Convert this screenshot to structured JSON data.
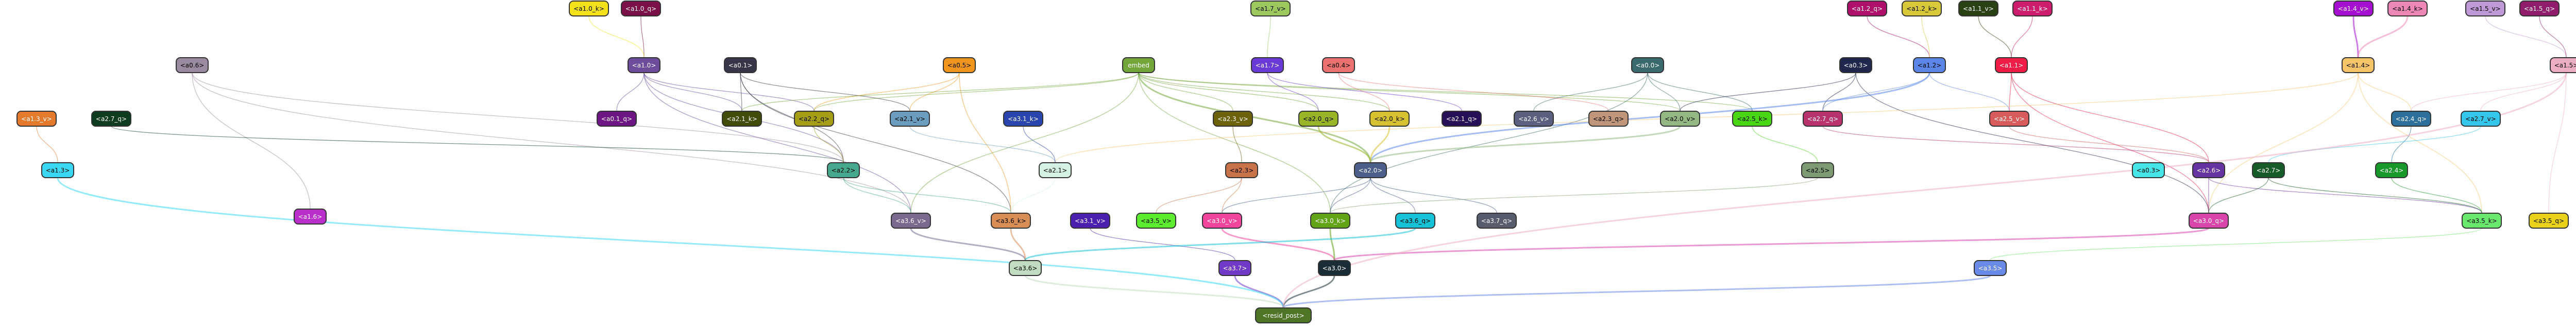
{
  "nodes": [
    {
      "id": "a1_0_k",
      "label": "<a1.0_k>",
      "color": "#f5e11a"
    },
    {
      "id": "a1_0_q",
      "label": "<a1.0_q>",
      "color": "#7a1047"
    },
    {
      "id": "a1_7_v",
      "label": "<a1.7_v>",
      "color": "#9cc85e"
    },
    {
      "id": "a1_2_q",
      "label": "<a1.2_q>",
      "color": "#ae0f6a"
    },
    {
      "id": "a1_2_k",
      "label": "<a1.2_k>",
      "color": "#d8c93a"
    },
    {
      "id": "a1_1_v",
      "label": "<a1.1_v>",
      "color": "#2a4113"
    },
    {
      "id": "a1_1_k",
      "label": "<a1.1_k>",
      "color": "#cf1d6d"
    },
    {
      "id": "a1_4_v",
      "label": "<a1.4_v>",
      "color": "#a50fd0"
    },
    {
      "id": "a1_4_k",
      "label": "<a1.4_k>",
      "color": "#ec87b6"
    },
    {
      "id": "a1_5_v",
      "label": "<a1.5_v>",
      "color": "#c09ad7"
    },
    {
      "id": "a1_5_q",
      "label": "<a1.5_q>",
      "color": "#8f1d6c"
    },
    {
      "id": "a0_6",
      "label": "<a0.6>",
      "color": "#9a8ba0"
    },
    {
      "id": "a1_0",
      "label": "<a1.0>",
      "color": "#6d4c9c"
    },
    {
      "id": "a0_1",
      "label": "<a0.1>",
      "color": "#373648"
    },
    {
      "id": "a0_5",
      "label": "<a0.5>",
      "color": "#f2951c"
    },
    {
      "id": "embed",
      "label": "embed",
      "color": "#72a53a"
    },
    {
      "id": "a1_7",
      "label": "<a1.7>",
      "color": "#6a3ad6"
    },
    {
      "id": "a0_4",
      "label": "<a0.4>",
      "color": "#ec7272"
    },
    {
      "id": "a0_0",
      "label": "<a0.0>",
      "color": "#3a6a6e"
    },
    {
      "id": "a0_3",
      "label": "<a0.3>",
      "color": "#20274e"
    },
    {
      "id": "a1_2",
      "label": "<a1.2>",
      "color": "#5b86e8"
    },
    {
      "id": "a1_1",
      "label": "<a1.1>",
      "color": "#f11c46"
    },
    {
      "id": "a1_4",
      "label": "<a1.4>",
      "color": "#f8c46a"
    },
    {
      "id": "a1_5",
      "label": "<a1.5>",
      "color": "#edaec4"
    },
    {
      "id": "a1_3_v",
      "label": "<a1.3_v>",
      "color": "#e37a2c"
    },
    {
      "id": "a2_7_q",
      "label": "<a2.7_q>",
      "color": "#0d3d1e"
    },
    {
      "id": "a0_1_q",
      "label": "<a0.1_q>",
      "color": "#6d1683"
    },
    {
      "id": "a2_1_k",
      "label": "<a2.1_k>",
      "color": "#424b0a"
    },
    {
      "id": "a2_2_q",
      "label": "<a2.2_q>",
      "color": "#a59e14"
    },
    {
      "id": "a2_1_v",
      "label": "<a2.1_v>",
      "color": "#6b9dbf"
    },
    {
      "id": "a3_1_k",
      "label": "<a3.1_k>",
      "color": "#2a45ae"
    },
    {
      "id": "a2_3_v",
      "label": "<a2.3_v>",
      "color": "#6b620b"
    },
    {
      "id": "a2_0_q",
      "label": "<a2.0_q>",
      "color": "#97b526"
    },
    {
      "id": "a2_0_k",
      "label": "<a2.0_k>",
      "color": "#d6c230"
    },
    {
      "id": "a2_1_q",
      "label": "<a2.1_q>",
      "color": "#270f57"
    },
    {
      "id": "a2_6_v",
      "label": "<a2.6_v>",
      "color": "#5b6080"
    },
    {
      "id": "a2_3_q",
      "label": "<a2.3_q>",
      "color": "#c0967a"
    },
    {
      "id": "a2_0_v",
      "label": "<a2.0_v>",
      "color": "#94b883"
    },
    {
      "id": "a2_5_k",
      "label": "<a2.5_k>",
      "color": "#49d613"
    },
    {
      "id": "a2_7_q2",
      "label": "<a2.7_q>",
      "color": "#b8336e"
    },
    {
      "id": "a2_5_v",
      "label": "<a2.5_v>",
      "color": "#d85c5c"
    },
    {
      "id": "a2_4_q",
      "label": "<a2.4_q>",
      "color": "#2c709b"
    },
    {
      "id": "a2_7_v",
      "label": "<a2.7_v>",
      "color": "#35c6ec"
    },
    {
      "id": "a1_3",
      "label": "<a1.3>",
      "color": "#3ad8f2"
    },
    {
      "id": "a1_6",
      "label": "<a1.6>",
      "color": "#b82fca"
    },
    {
      "id": "a2_2",
      "label": "<a2.2>",
      "color": "#45a78c"
    },
    {
      "id": "a2_1",
      "label": "<a2.1>",
      "color": "#d4f2e4"
    },
    {
      "id": "a2_3",
      "label": "<a2.3>",
      "color": "#c8724a"
    },
    {
      "id": "a2_0",
      "label": "<a2.0>",
      "color": "#4b5f8a"
    },
    {
      "id": "a2_5",
      "label": "<a2.5>",
      "color": "#7d9a72"
    },
    {
      "id": "a0_3b",
      "label": "<a0.3>",
      "color": "#46e6e8"
    },
    {
      "id": "a2_6",
      "label": "<a2.6>",
      "color": "#6634a0"
    },
    {
      "id": "a2_7",
      "label": "<a2.7>",
      "color": "#175c28"
    },
    {
      "id": "a2_4",
      "label": "<a2.4>",
      "color": "#18982a"
    },
    {
      "id": "a3_6_v",
      "label": "<a3.6_v>",
      "color": "#79698f"
    },
    {
      "id": "a3_6_k",
      "label": "<a3.6_k>",
      "color": "#d88e55"
    },
    {
      "id": "a3_1_v",
      "label": "<a3.1_v>",
      "color": "#4b1fae"
    },
    {
      "id": "a3_5_v",
      "label": "<a3.5_v>",
      "color": "#5cee2e"
    },
    {
      "id": "a3_0_v",
      "label": "<a3.0_v>",
      "color": "#f0459c"
    },
    {
      "id": "a3_0_k",
      "label": "<a3.0_k>",
      "color": "#62a416"
    },
    {
      "id": "a3_6_q",
      "label": "<a3.6_q>",
      "color": "#16c2d6"
    },
    {
      "id": "a3_7_q",
      "label": "<a3.7_q>",
      "color": "#585c6c"
    },
    {
      "id": "a3_0_q",
      "label": "<a3.0_q>",
      "color": "#d846ac"
    },
    {
      "id": "a3_5_k",
      "label": "<a3.5_k>",
      "color": "#6ae86e"
    },
    {
      "id": "a3_5_q",
      "label": "<a3.5_q>",
      "color": "#ebd21a"
    },
    {
      "id": "a3_6",
      "label": "<a3.6>",
      "color": "#c1dcc1"
    },
    {
      "id": "a3_7",
      "label": "<a3.7>",
      "color": "#7039c8"
    },
    {
      "id": "a3_0",
      "label": "<a3.0>",
      "color": "#1a2d36"
    },
    {
      "id": "a3_5",
      "label": "<a3.5>",
      "color": "#6a8ae8"
    },
    {
      "id": "resid_post",
      "label": "<resid_post>",
      "color": "#4e7426"
    }
  ],
  "edges": [
    [
      "a1_0_q",
      "a1_0"
    ],
    [
      "a1_0_k",
      "a1_0"
    ],
    [
      "a1_7_v",
      "a1_7"
    ],
    [
      "a1_2_q",
      "a1_2"
    ],
    [
      "a1_2_k",
      "a1_2"
    ],
    [
      "a1_1_v",
      "a1_1"
    ],
    [
      "a1_1_k",
      "a1_1"
    ],
    [
      "a1_4_v",
      "a1_4"
    ],
    [
      "a1_4_k",
      "a1_4"
    ],
    [
      "a1_5_v",
      "a1_5"
    ],
    [
      "a1_5_q",
      "a1_5"
    ],
    [
      "a1_0",
      "a0_1_q"
    ],
    [
      "a1_0",
      "a2_1_k"
    ],
    [
      "a1_0",
      "a2_2_q"
    ],
    [
      "a1_0",
      "a3_6_v"
    ],
    [
      "a1_0",
      "a2_2"
    ],
    [
      "a0_1",
      "a2_1_v"
    ],
    [
      "a0_1",
      "a2_1_k"
    ],
    [
      "a0_1",
      "a2_2"
    ],
    [
      "a0_1",
      "a3_6_k"
    ],
    [
      "a0_6",
      "a3_6_v"
    ],
    [
      "a0_6",
      "a2_2"
    ],
    [
      "a0_6",
      "a1_6"
    ],
    [
      "a0_5",
      "a2_1_v"
    ],
    [
      "a0_5",
      "a3_6_k"
    ],
    [
      "a0_5",
      "a2_2_q"
    ],
    [
      "embed",
      "a2_1_k"
    ],
    [
      "embed",
      "a2_2_q"
    ],
    [
      "embed",
      "a2_0_q"
    ],
    [
      "embed",
      "a2_0_k"
    ],
    [
      "embed",
      "a2_3_v"
    ],
    [
      "embed",
      "a2_0_v"
    ],
    [
      "embed",
      "a2_5_k"
    ],
    [
      "embed",
      "a3_6_v"
    ],
    [
      "embed",
      "a3_0_k"
    ],
    [
      "embed",
      "a2_0"
    ],
    [
      "a1_7",
      "a2_0_q"
    ],
    [
      "a1_7",
      "a2_1_q"
    ],
    [
      "a0_4",
      "a2_0_k"
    ],
    [
      "a0_4",
      "a2_3_q"
    ],
    [
      "a0_0",
      "a2_0_v"
    ],
    [
      "a0_0",
      "a2_6_v"
    ],
    [
      "a0_0",
      "a2_5_k"
    ],
    [
      "a0_0",
      "a3_0_k"
    ],
    [
      "a0_3",
      "a2_0_v"
    ],
    [
      "a0_3",
      "a2_7_q2"
    ],
    [
      "a0_3",
      "a3_0_q"
    ],
    [
      "a1_2",
      "a2_5_v"
    ],
    [
      "a1_2",
      "a2_7_q2"
    ],
    [
      "a1_2",
      "a2_0"
    ],
    [
      "a1_1",
      "a2_5_v"
    ],
    [
      "a1_1",
      "a3_0_q"
    ],
    [
      "a1_1",
      "a2_6"
    ],
    [
      "a1_4",
      "a2_4_q"
    ],
    [
      "a1_4",
      "a3_5_k"
    ],
    [
      "a1_4",
      "a3_0_q"
    ],
    [
      "a1_4",
      "a2_1"
    ],
    [
      "a1_5",
      "a2_4_q"
    ],
    [
      "a1_5",
      "a2_7_v"
    ],
    [
      "a1_5",
      "a3_5_q"
    ],
    [
      "a1_3_v",
      "a1_3"
    ],
    [
      "a2_7_q",
      "a2_2"
    ],
    [
      "a2_2_q",
      "a2_2"
    ],
    [
      "a2_1_v",
      "a2_1"
    ],
    [
      "a3_1_k",
      "a2_1"
    ],
    [
      "a2_3_v",
      "a2_3"
    ],
    [
      "a2_0_q",
      "a2_0"
    ],
    [
      "a2_0_k",
      "a2_0"
    ],
    [
      "a2_0_v",
      "a2_0"
    ],
    [
      "a2_5_k",
      "a2_5"
    ],
    [
      "a2_7_q2",
      "a2_6"
    ],
    [
      "a2_5_v",
      "a2_6"
    ],
    [
      "a2_4_q",
      "a2_4"
    ],
    [
      "a2_7_v",
      "a2_7"
    ],
    [
      "a2_2",
      "a3_6_v"
    ],
    [
      "a2_2",
      "a3_6_k"
    ],
    [
      "a2_1",
      "a3_6_k"
    ],
    [
      "a2_3",
      "a3_0_v"
    ],
    [
      "a2_3",
      "a3_5_v"
    ],
    [
      "a2_0",
      "a3_0_k"
    ],
    [
      "a2_0",
      "a3_6_q"
    ],
    [
      "a2_0",
      "a3_7_q"
    ],
    [
      "a2_0",
      "a3_0_v"
    ],
    [
      "a2_5",
      "a3_0_k"
    ],
    [
      "a2_6",
      "a3_0_q"
    ],
    [
      "a2_6",
      "a3_5_k"
    ],
    [
      "a2_7",
      "a3_0_q"
    ],
    [
      "a2_7",
      "a3_5_k"
    ],
    [
      "a2_4",
      "a3_5_k"
    ],
    [
      "a3_6_v",
      "a3_6"
    ],
    [
      "a3_6_k",
      "a3_6"
    ],
    [
      "a3_1_v",
      "a3_7"
    ],
    [
      "a3_0_v",
      "a3_0"
    ],
    [
      "a3_0_k",
      "a3_0"
    ],
    [
      "a3_6_q",
      "a3_6"
    ],
    [
      "a3_0_q",
      "a3_0"
    ],
    [
      "a3_5_k",
      "a3_5"
    ],
    [
      "a3_6",
      "resid_post"
    ],
    [
      "a3_7",
      "resid_post"
    ],
    [
      "a3_0",
      "resid_post"
    ],
    [
      "a3_5",
      "resid_post"
    ],
    [
      "a1_3",
      "resid_post"
    ],
    [
      "a1_5",
      "resid_post"
    ]
  ]
}
